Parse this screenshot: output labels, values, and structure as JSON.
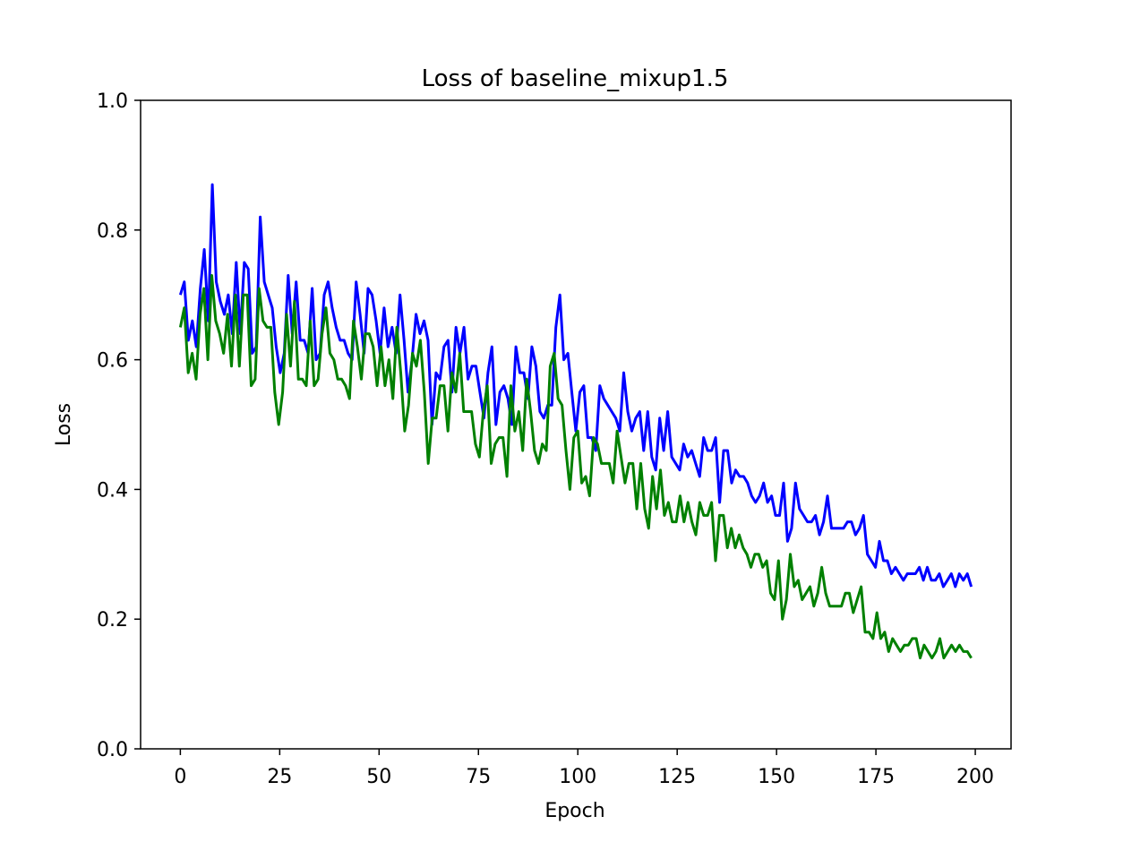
{
  "chart_data": {
    "type": "line",
    "title": "Loss of baseline_mixup1.5",
    "xlabel": "Epoch",
    "ylabel": "Loss",
    "xlim": [
      -10,
      209
    ],
    "ylim": [
      0.0,
      1.0
    ],
    "xticks": [
      0,
      25,
      50,
      75,
      100,
      125,
      150,
      175,
      200
    ],
    "xtick_labels": [
      "0",
      "25",
      "50",
      "75",
      "100",
      "125",
      "150",
      "175",
      "200"
    ],
    "yticks": [
      0.0,
      0.2,
      0.4,
      0.6,
      0.8,
      1.0
    ],
    "ytick_labels": [
      "0.0",
      "0.2",
      "0.4",
      "0.6",
      "0.8",
      "1.0"
    ],
    "grid": false,
    "legend": "none",
    "x_start": 0,
    "x_end": 199,
    "series": [
      {
        "color": "#0000ff",
        "values": [
          0.7,
          0.72,
          0.63,
          0.66,
          0.62,
          0.71,
          0.77,
          0.66,
          0.87,
          0.72,
          0.69,
          0.67,
          0.7,
          0.64,
          0.75,
          0.64,
          0.75,
          0.74,
          0.61,
          0.62,
          0.82,
          0.72,
          0.7,
          0.68,
          0.62,
          0.58,
          0.61,
          0.73,
          0.64,
          0.72,
          0.63,
          0.63,
          0.61,
          0.71,
          0.6,
          0.61,
          0.7,
          0.72,
          0.68,
          0.65,
          0.63,
          0.63,
          0.61,
          0.6,
          0.72,
          0.67,
          0.61,
          0.71,
          0.7,
          0.66,
          0.61,
          0.68,
          0.62,
          0.65,
          0.61,
          0.7,
          0.63,
          0.55,
          0.6,
          0.67,
          0.64,
          0.66,
          0.63,
          0.5,
          0.58,
          0.57,
          0.62,
          0.63,
          0.55,
          0.65,
          0.61,
          0.65,
          0.57,
          0.59,
          0.59,
          0.55,
          0.51,
          0.58,
          0.62,
          0.5,
          0.55,
          0.56,
          0.54,
          0.5,
          0.62,
          0.58,
          0.58,
          0.54,
          0.62,
          0.59,
          0.52,
          0.51,
          0.53,
          0.53,
          0.65,
          0.7,
          0.6,
          0.61,
          0.55,
          0.49,
          0.55,
          0.56,
          0.48,
          0.48,
          0.46,
          0.56,
          0.54,
          0.53,
          0.52,
          0.51,
          0.49,
          0.58,
          0.52,
          0.49,
          0.51,
          0.52,
          0.46,
          0.52,
          0.45,
          0.43,
          0.51,
          0.46,
          0.52,
          0.45,
          0.44,
          0.43,
          0.47,
          0.45,
          0.46,
          0.44,
          0.42,
          0.48,
          0.46,
          0.46,
          0.48,
          0.38,
          0.46,
          0.46,
          0.41,
          0.43,
          0.42,
          0.42,
          0.41,
          0.39,
          0.38,
          0.39,
          0.41,
          0.38,
          0.39,
          0.36,
          0.36,
          0.41,
          0.32,
          0.34,
          0.41,
          0.37,
          0.36,
          0.35,
          0.35,
          0.36,
          0.33,
          0.35,
          0.39,
          0.34,
          0.34,
          0.34,
          0.34,
          0.35,
          0.35,
          0.33,
          0.34,
          0.36,
          0.3,
          0.29,
          0.28,
          0.32,
          0.29,
          0.29,
          0.27,
          0.28,
          0.27,
          0.26,
          0.27,
          0.27,
          0.27,
          0.28,
          0.26,
          0.28,
          0.26,
          0.26,
          0.27,
          0.25,
          0.26,
          0.27,
          0.25,
          0.27,
          0.26,
          0.27,
          0.25
        ]
      },
      {
        "color": "#008000",
        "values": [
          0.65,
          0.68,
          0.58,
          0.61,
          0.57,
          0.67,
          0.71,
          0.6,
          0.73,
          0.66,
          0.64,
          0.61,
          0.67,
          0.59,
          0.7,
          0.59,
          0.7,
          0.7,
          0.56,
          0.57,
          0.71,
          0.66,
          0.65,
          0.65,
          0.55,
          0.5,
          0.55,
          0.67,
          0.59,
          0.69,
          0.57,
          0.57,
          0.56,
          0.66,
          0.56,
          0.57,
          0.64,
          0.68,
          0.61,
          0.6,
          0.57,
          0.57,
          0.56,
          0.54,
          0.66,
          0.62,
          0.57,
          0.64,
          0.64,
          0.62,
          0.56,
          0.62,
          0.56,
          0.6,
          0.54,
          0.65,
          0.58,
          0.49,
          0.53,
          0.61,
          0.59,
          0.63,
          0.55,
          0.44,
          0.51,
          0.51,
          0.56,
          0.56,
          0.49,
          0.58,
          0.55,
          0.61,
          0.52,
          0.52,
          0.52,
          0.47,
          0.45,
          0.52,
          0.56,
          0.44,
          0.47,
          0.48,
          0.48,
          0.42,
          0.56,
          0.49,
          0.52,
          0.46,
          0.57,
          0.52,
          0.46,
          0.44,
          0.47,
          0.46,
          0.59,
          0.61,
          0.54,
          0.53,
          0.46,
          0.4,
          0.48,
          0.49,
          0.41,
          0.42,
          0.39,
          0.48,
          0.47,
          0.44,
          0.44,
          0.44,
          0.41,
          0.49,
          0.45,
          0.41,
          0.44,
          0.44,
          0.37,
          0.44,
          0.37,
          0.34,
          0.42,
          0.37,
          0.43,
          0.36,
          0.38,
          0.35,
          0.35,
          0.39,
          0.35,
          0.38,
          0.35,
          0.33,
          0.38,
          0.36,
          0.36,
          0.38,
          0.29,
          0.36,
          0.36,
          0.31,
          0.34,
          0.31,
          0.33,
          0.31,
          0.3,
          0.28,
          0.3,
          0.3,
          0.28,
          0.29,
          0.24,
          0.23,
          0.29,
          0.2,
          0.23,
          0.3,
          0.25,
          0.26,
          0.23,
          0.24,
          0.25,
          0.22,
          0.24,
          0.28,
          0.24,
          0.22,
          0.22,
          0.22,
          0.22,
          0.24,
          0.24,
          0.21,
          0.23,
          0.25,
          0.18,
          0.18,
          0.17,
          0.21,
          0.17,
          0.18,
          0.15,
          0.17,
          0.16,
          0.15,
          0.16,
          0.16,
          0.17,
          0.17,
          0.14,
          0.16,
          0.15,
          0.14,
          0.15,
          0.17,
          0.14,
          0.15,
          0.16,
          0.15,
          0.16,
          0.15,
          0.15,
          0.14
        ]
      }
    ]
  }
}
